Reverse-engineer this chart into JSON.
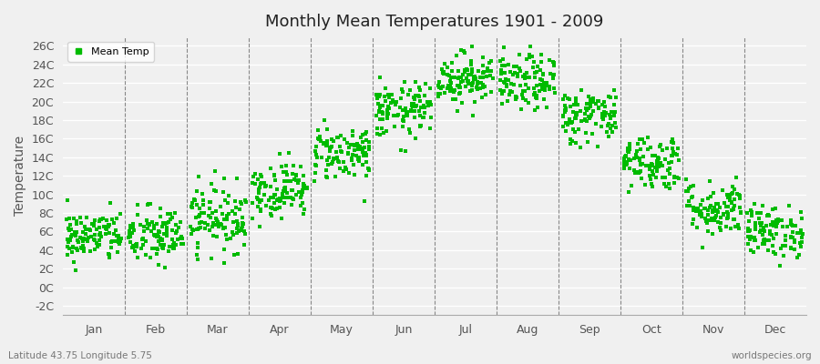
{
  "title": "Monthly Mean Temperatures 1901 - 2009",
  "ylabel": "Temperature",
  "months": [
    "Jan",
    "Feb",
    "Mar",
    "Apr",
    "May",
    "Jun",
    "Jul",
    "Aug",
    "Sep",
    "Oct",
    "Nov",
    "Dec"
  ],
  "ytick_labels": [
    "-2C",
    "0C",
    "2C",
    "4C",
    "6C",
    "8C",
    "10C",
    "12C",
    "14C",
    "16C",
    "18C",
    "20C",
    "22C",
    "24C",
    "26C"
  ],
  "ytick_values": [
    -2,
    0,
    2,
    4,
    6,
    8,
    10,
    12,
    14,
    16,
    18,
    20,
    22,
    24,
    26
  ],
  "ylim": [
    -3.0,
    27.0
  ],
  "dot_color": "#00bb00",
  "bg_color": "#f0f0f0",
  "plot_bg_color": "#f0f0f0",
  "grid_color": "#ffffff",
  "dashed_line_color": "#888888",
  "legend_label": "Mean Temp",
  "bottom_left_text": "Latitude 43.75 Longitude 5.75",
  "bottom_right_text": "worldspecies.org",
  "mean_temps": [
    5.5,
    5.5,
    7.5,
    10.5,
    14.5,
    19.0,
    22.5,
    22.0,
    18.5,
    13.5,
    8.5,
    6.0
  ],
  "std_temps": [
    1.4,
    1.6,
    1.8,
    1.5,
    1.5,
    1.5,
    1.4,
    1.5,
    1.5,
    1.5,
    1.5,
    1.4
  ],
  "n_years": 109,
  "seed": 42
}
